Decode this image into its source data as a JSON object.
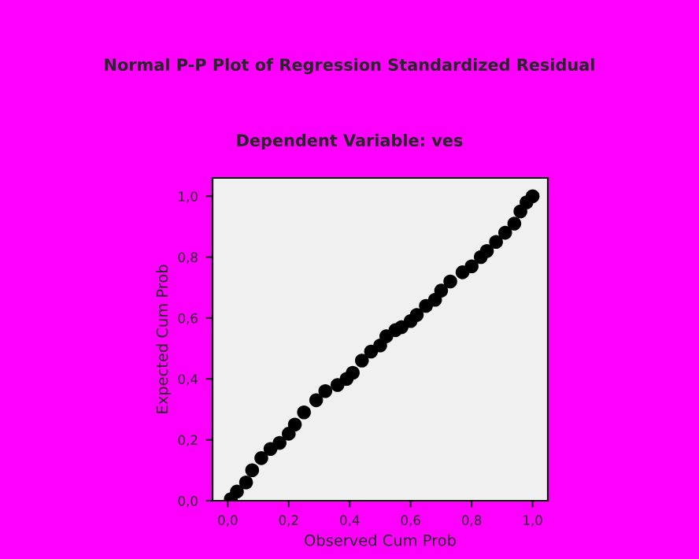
{
  "chart_data": {
    "type": "scatter",
    "title": "Normal P-P Plot of Regression Standardized Residual",
    "subtitle": "Dependent Variable: ves",
    "xlabel": "Observed Cum Prob",
    "ylabel": "Expected Cum Prob",
    "x": [
      0.01,
      0.03,
      0.06,
      0.08,
      0.11,
      0.14,
      0.17,
      0.2,
      0.22,
      0.25,
      0.29,
      0.32,
      0.36,
      0.39,
      0.41,
      0.44,
      0.47,
      0.5,
      0.52,
      0.55,
      0.57,
      0.6,
      0.62,
      0.65,
      0.68,
      0.7,
      0.73,
      0.77,
      0.8,
      0.83,
      0.85,
      0.88,
      0.91,
      0.94,
      0.96,
      0.98,
      1.0
    ],
    "series": [
      {
        "color": "#000000",
        "values": [
          0.005,
          0.03,
          0.06,
          0.1,
          0.14,
          0.17,
          0.19,
          0.22,
          0.25,
          0.29,
          0.33,
          0.36,
          0.38,
          0.4,
          0.42,
          0.46,
          0.49,
          0.51,
          0.54,
          0.56,
          0.57,
          0.59,
          0.61,
          0.64,
          0.66,
          0.69,
          0.72,
          0.75,
          0.77,
          0.8,
          0.82,
          0.85,
          0.88,
          0.91,
          0.95,
          0.98,
          1.0
        ]
      }
    ],
    "xlim": [
      -0.05,
      1.05
    ],
    "ylim": [
      0,
      1.06
    ],
    "xticks": [
      {
        "value": 0,
        "label": "0,0"
      },
      {
        "value": 0.2,
        "label": "0,2"
      },
      {
        "value": 0.4,
        "label": "0,4"
      },
      {
        "value": 0.6,
        "label": "0,6"
      },
      {
        "value": 0.8,
        "label": "0,8"
      },
      {
        "value": 1,
        "label": "1,0"
      }
    ],
    "yticks": [
      {
        "value": 0,
        "label": "0,0"
      },
      {
        "value": 0.2,
        "label": "0,2"
      },
      {
        "value": 0.4,
        "label": "0,4"
      },
      {
        "value": 0.6,
        "label": "0,6"
      },
      {
        "value": 0.8,
        "label": "0,8"
      },
      {
        "value": 1,
        "label": "1,0"
      }
    ],
    "marker": "circle",
    "grid": false,
    "legend": false
  }
}
